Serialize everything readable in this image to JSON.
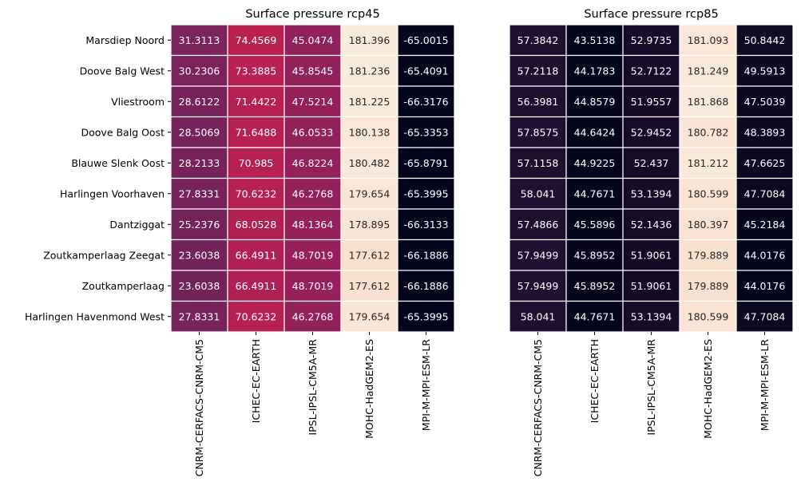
{
  "chart_data": [
    {
      "type": "heatmap",
      "title": "Surface pressure rcp45",
      "rows": [
        "Marsdiep Noord",
        "Doove Balg West",
        "Vliestroom",
        "Doove Balg Oost",
        "Blauwe Slenk Oost",
        "Harlingen Voorhaven",
        "Dantziggat",
        "Zoutkamperlaag Zeegat",
        "Zoutkamperlaag",
        "Harlingen Havenmond West"
      ],
      "columns": [
        "CNRM-CERFACS-CNRM-CM5",
        "ICHEC-EC-EARTH",
        "IPSL-IPSL-CM5A-MR",
        "MOHC-HadGEM2-ES",
        "MPI-M-MPI-ESM-LR"
      ],
      "values": [
        [
          "31.3113",
          "74.4569",
          "45.0474",
          "181.396",
          "-65.0015"
        ],
        [
          "30.2306",
          "73.3885",
          "45.8545",
          "181.236",
          "-65.4091"
        ],
        [
          "28.6122",
          "71.4422",
          "47.5214",
          "181.225",
          "-66.3176"
        ],
        [
          "28.5069",
          "71.6488",
          "46.0533",
          "180.138",
          "-65.3353"
        ],
        [
          "28.2133",
          "70.985",
          "46.8224",
          "180.482",
          "-65.8791"
        ],
        [
          "27.8331",
          "70.6232",
          "46.2768",
          "179.654",
          "-65.3995"
        ],
        [
          "25.2376",
          "68.0528",
          "48.1364",
          "178.895",
          "-66.3133"
        ],
        [
          "23.6038",
          "66.4911",
          "48.7019",
          "177.612",
          "-66.1886"
        ],
        [
          "23.6038",
          "66.4911",
          "48.7019",
          "177.612",
          "-66.1886"
        ],
        [
          "27.8331",
          "70.6232",
          "46.2768",
          "179.654",
          "-65.3995"
        ]
      ],
      "color_range": [
        -66.3176,
        181.396
      ],
      "colormap": "rocket",
      "colorbar": false,
      "show_row_labels": true
    },
    {
      "type": "heatmap",
      "title": "Surface pressure rcp85",
      "rows": [
        "Marsdiep Noord",
        "Doove Balg West",
        "Vliestroom",
        "Doove Balg Oost",
        "Blauwe Slenk Oost",
        "Harlingen Voorhaven",
        "Dantziggat",
        "Zoutkamperlaag Zeegat",
        "Zoutkamperlaag",
        "Harlingen Havenmond West"
      ],
      "columns": [
        "CNRM-CERFACS-CNRM-CM5",
        "ICHEC-EC-EARTH",
        "IPSL-IPSL-CM5A-MR",
        "MOHC-HadGEM2-ES",
        "MPI-M-MPI-ESM-LR"
      ],
      "values": [
        [
          "57.3842",
          "43.5138",
          "52.9735",
          "181.093",
          "50.8442"
        ],
        [
          "57.2118",
          "44.1783",
          "52.7122",
          "181.249",
          "49.5913"
        ],
        [
          "56.3981",
          "44.8579",
          "51.9557",
          "181.868",
          "47.5039"
        ],
        [
          "57.8575",
          "44.6424",
          "52.9452",
          "180.782",
          "48.3893"
        ],
        [
          "57.1158",
          "44.9225",
          "52.437",
          "181.212",
          "47.6625"
        ],
        [
          "58.041",
          "44.7671",
          "53.1394",
          "180.599",
          "47.7084"
        ],
        [
          "57.4866",
          "45.5896",
          "52.1436",
          "180.397",
          "45.2184"
        ],
        [
          "57.9499",
          "45.8952",
          "51.9061",
          "179.889",
          "44.0176"
        ],
        [
          "57.9499",
          "45.8952",
          "51.9061",
          "179.889",
          "44.0176"
        ],
        [
          "58.041",
          "44.7671",
          "53.1394",
          "180.599",
          "47.7084"
        ]
      ],
      "color_range": [
        44.0176,
        181.868
      ],
      "colormap": "rocket",
      "colorbar": false,
      "show_row_labels": false
    }
  ]
}
